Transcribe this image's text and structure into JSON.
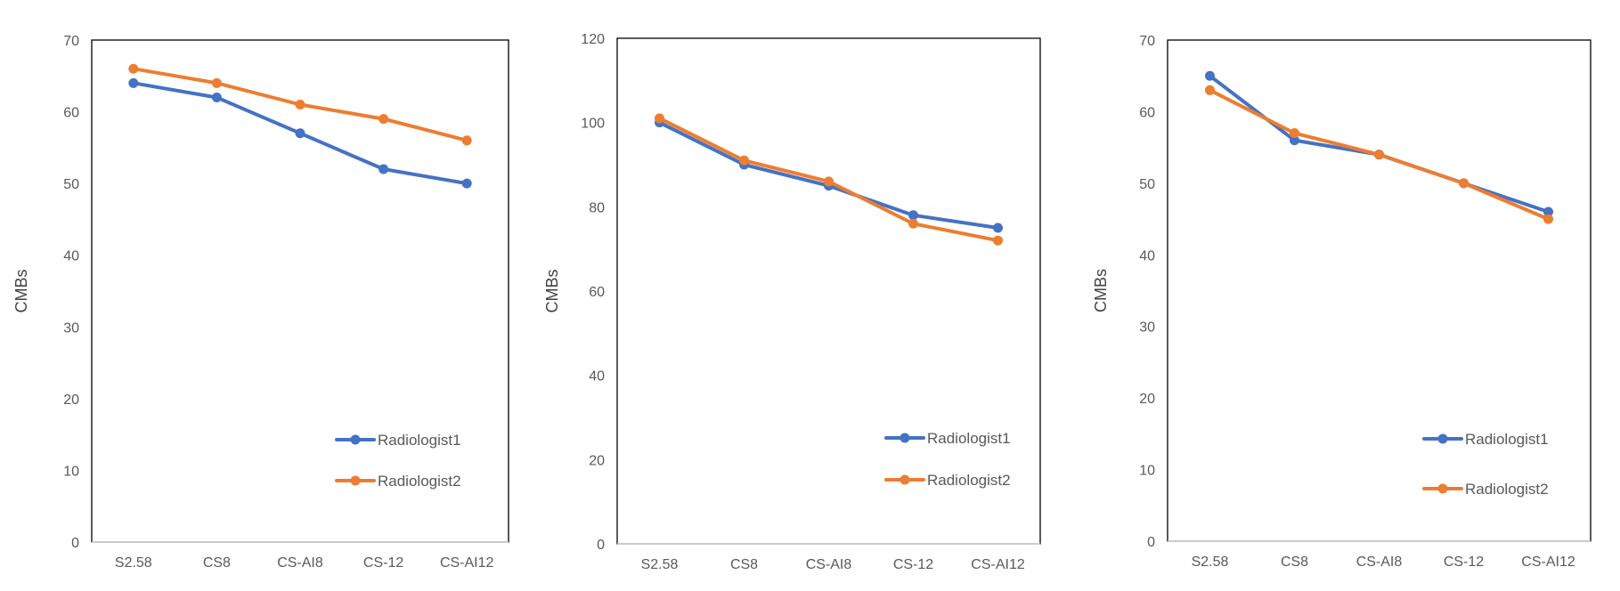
{
  "chart_data": [
    {
      "type": "line",
      "categories": [
        "S2.58",
        "CS8",
        "CS-AI8",
        "CS-12",
        "CS-AI12"
      ],
      "ylabel": "CMBs",
      "xlabel": "",
      "ylim": [
        0,
        70
      ],
      "yticks": [
        0,
        10,
        20,
        30,
        40,
        50,
        60,
        70
      ],
      "series": [
        {
          "name": "Radiologist1",
          "color": "#4472C4",
          "values": [
            64,
            62,
            57,
            52,
            50
          ]
        },
        {
          "name": "Radiologist2",
          "color": "#ED7D31",
          "values": [
            66,
            64,
            61,
            59,
            56
          ]
        }
      ],
      "legend": "bottom-right"
    },
    {
      "type": "line",
      "categories": [
        "S2.58",
        "CS8",
        "CS-AI8",
        "CS-12",
        "CS-AI12"
      ],
      "ylabel": "CMBs",
      "xlabel": "",
      "ylim": [
        0,
        120
      ],
      "yticks": [
        0,
        20,
        40,
        60,
        80,
        100,
        120
      ],
      "series": [
        {
          "name": "Radiologist1",
          "color": "#4472C4",
          "values": [
            100,
            90,
            85,
            78,
            75
          ]
        },
        {
          "name": "Radiologist2",
          "color": "#ED7D31",
          "values": [
            101,
            91,
            86,
            76,
            72
          ]
        }
      ],
      "legend": "bottom-right"
    },
    {
      "type": "line",
      "categories": [
        "S2.58",
        "CS8",
        "CS-AI8",
        "CS-12",
        "CS-AI12"
      ],
      "ylabel": "CMBs",
      "xlabel": "",
      "ylim": [
        0,
        70
      ],
      "yticks": [
        0,
        10,
        20,
        30,
        40,
        50,
        60,
        70
      ],
      "series": [
        {
          "name": "Radiologist1",
          "color": "#4472C4",
          "values": [
            65,
            56,
            54,
            50,
            46
          ]
        },
        {
          "name": "Radiologist2",
          "color": "#ED7D31",
          "values": [
            63,
            57,
            54,
            50,
            45
          ]
        }
      ],
      "legend": "bottom-right"
    }
  ]
}
